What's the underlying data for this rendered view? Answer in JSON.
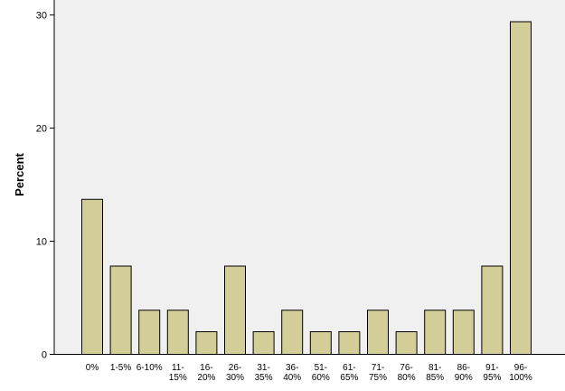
{
  "chart_data": {
    "type": "bar",
    "title": "",
    "xlabel": "",
    "ylabel": "Percent",
    "ylim": [
      0,
      30
    ],
    "yticks": [
      "0",
      "10",
      "20",
      "30"
    ],
    "categories": [
      [
        "0%"
      ],
      [
        "1-5%"
      ],
      [
        "6-10%"
      ],
      [
        "11-",
        "15%"
      ],
      [
        "16-",
        "20%"
      ],
      [
        "26-",
        "30%"
      ],
      [
        "31-",
        "35%"
      ],
      [
        "36-",
        "40%"
      ],
      [
        "51-",
        "60%"
      ],
      [
        "61-",
        "65%"
      ],
      [
        "71-",
        "75%"
      ],
      [
        "76-",
        "80%"
      ],
      [
        "81-",
        "85%"
      ],
      [
        "86-",
        "90%"
      ],
      [
        "91-",
        "95%"
      ],
      [
        "96-",
        "100%"
      ]
    ],
    "values": [
      13.7,
      7.8,
      3.9,
      3.9,
      2.0,
      7.8,
      2.0,
      3.9,
      2.0,
      2.0,
      3.9,
      2.0,
      3.9,
      3.9,
      7.8,
      29.4
    ],
    "grid": false,
    "colors": {
      "bar_fill": "#d3ce97",
      "bar_stroke": "#000000",
      "plot_background": "#f0f0f0",
      "axis": "#000000"
    }
  }
}
